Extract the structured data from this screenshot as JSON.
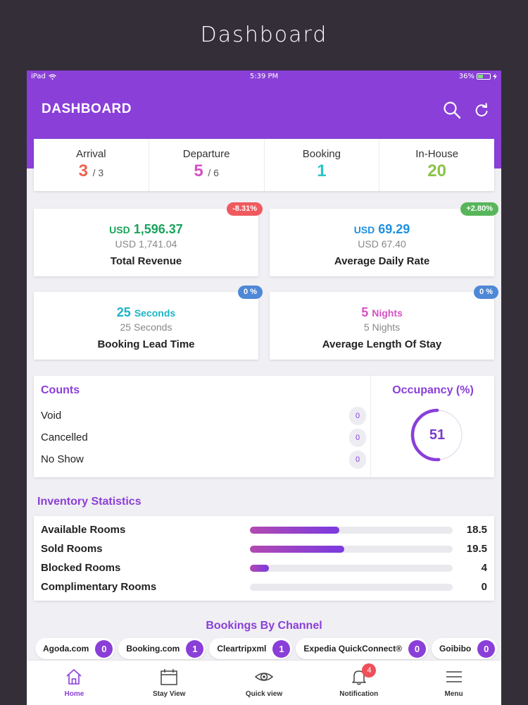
{
  "caption": "Dashboard",
  "status_bar": {
    "device": "iPad",
    "time": "5:39 PM",
    "battery": "36%"
  },
  "header": {
    "title": "DASHBOARD",
    "search_icon": "search-icon",
    "refresh_icon": "refresh-icon"
  },
  "summary": [
    {
      "label": "Arrival",
      "value": "3",
      "total": "/ 3",
      "color": "#ef6350"
    },
    {
      "label": "Departure",
      "value": "5",
      "total": "/ 6",
      "color": "#d452c4"
    },
    {
      "label": "Booking",
      "value": "1",
      "total": "",
      "color": "#2ec4c4"
    },
    {
      "label": "In-House",
      "value": "20",
      "total": "",
      "color": "#8bc34a"
    }
  ],
  "metrics": [
    {
      "currency": "USD",
      "value": "1,596.37",
      "previous": "USD 1,741.04",
      "name": "Total Revenue",
      "badge": "-8.31%",
      "badge_color": "red",
      "color": "#1aa35c"
    },
    {
      "currency": "USD",
      "value": "69.29",
      "previous": "USD 67.40",
      "name": "Average Daily Rate",
      "badge": "+2.80%",
      "badge_color": "green",
      "color": "#1e90e0"
    },
    {
      "value": "25",
      "unit": "Seconds",
      "previous": "25 Seconds",
      "name": "Booking Lead Time",
      "badge": "0 %",
      "badge_color": "blue",
      "color": "#1bb4c8"
    },
    {
      "value": "5",
      "unit": "Nights",
      "previous": "5 Nights",
      "name": "Average Length Of Stay",
      "badge": "0 %",
      "badge_color": "blue",
      "color": "#d452c4"
    }
  ],
  "counts": {
    "title": "Counts",
    "items": [
      {
        "label": "Void",
        "value": "0"
      },
      {
        "label": "Cancelled",
        "value": "0"
      },
      {
        "label": "No Show",
        "value": "0"
      }
    ]
  },
  "occupancy": {
    "title": "Occupancy (%)",
    "value": "51",
    "percent": 51
  },
  "inventory": {
    "title": "Inventory Statistics",
    "items": [
      {
        "label": "Available Rooms",
        "value": "18.5",
        "fill": 0.44
      },
      {
        "label": "Sold Rooms",
        "value": "19.5",
        "fill": 0.465
      },
      {
        "label": "Blocked Rooms",
        "value": "4",
        "fill": 0.095
      },
      {
        "label": "Complimentary Rooms",
        "value": "0",
        "fill": 0
      }
    ]
  },
  "channels": {
    "title": "Bookings By Channel",
    "items": [
      {
        "name": "Agoda.com",
        "count": "0"
      },
      {
        "name": "Booking.com",
        "count": "1"
      },
      {
        "name": "Cleartripxml",
        "count": "1"
      },
      {
        "name": "Expedia QuickConnect®",
        "count": "0"
      },
      {
        "name": "Goibibo",
        "count": "0"
      }
    ]
  },
  "tabs": [
    {
      "label": "Home",
      "icon": "home-icon"
    },
    {
      "label": "Stay View",
      "icon": "calendar-icon"
    },
    {
      "label": "Quick view",
      "icon": "eye-icon"
    },
    {
      "label": "Notification",
      "icon": "bell-icon",
      "badge": "4"
    },
    {
      "label": "Menu",
      "icon": "menu-icon"
    }
  ]
}
